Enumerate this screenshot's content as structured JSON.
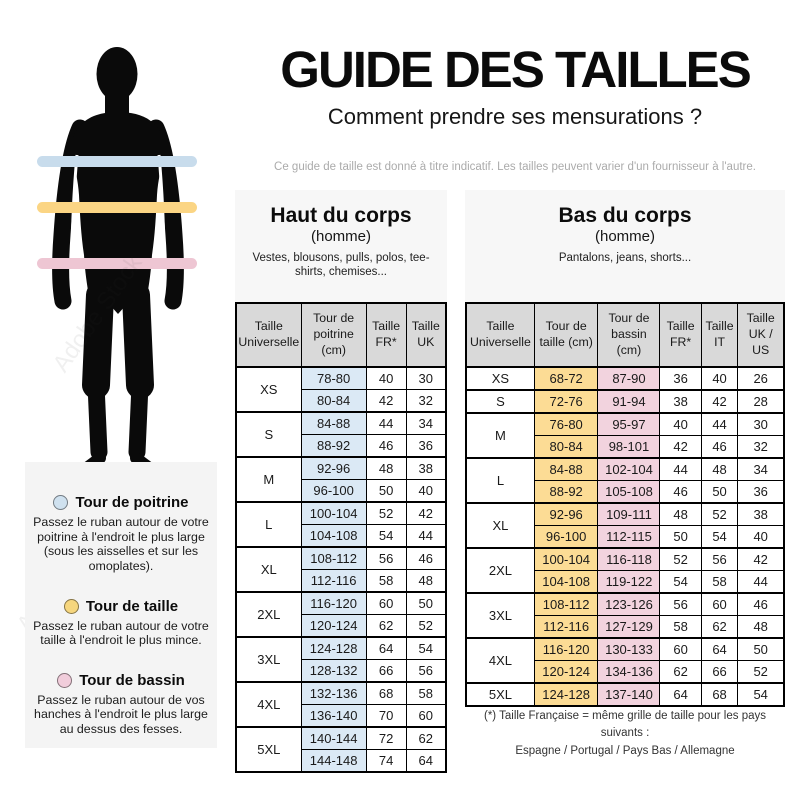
{
  "header": {
    "title": "GUIDE DES TAILLES",
    "subtitle": "Comment prendre ses mensurations ?",
    "disclaimer": "Ce guide de taille est donné à titre indicatif. Les tailles peuvent varier d'un fournisseur à l'autre."
  },
  "watermark": "Adobe Stock",
  "colors": {
    "band_chest": "#c8dcec",
    "band_waist": "#fbd584",
    "band_hips": "#eec6d3",
    "cell_chest": "#dbe9f5",
    "cell_waist": "#fcdc95",
    "cell_hips": "#f2d3de",
    "table_header_bg": "#d9d9d9",
    "silhouette": "#0a0a0a"
  },
  "legend": {
    "items": [
      {
        "title": "Tour de poitrine",
        "color": "#cfe1ef",
        "description": "Passez le ruban autour de votre poitrine à l'endroit le plus large (sous les aisselles et sur les omoplates)."
      },
      {
        "title": "Tour de taille",
        "color": "#f6d67e",
        "description": "Passez le ruban autour de votre taille à l'endroit le plus mince."
      },
      {
        "title": "Tour de bassin",
        "color": "#f1cddb",
        "description": "Passez le ruban autour de vos hanches à l'endroit le plus large au dessus des fesses."
      }
    ]
  },
  "upper_table": {
    "title": "Haut du corps",
    "subtitle": "(homme)",
    "items": "Vestes, blousons, pulls, polos, tee-shirts, chemises...",
    "columns": [
      "Taille Universelle",
      "Tour de poitrine (cm)",
      "Taille FR*",
      "Taille UK"
    ],
    "groups": [
      {
        "size": "XS",
        "rows": [
          [
            "78-80",
            "40",
            "30"
          ],
          [
            "80-84",
            "42",
            "32"
          ]
        ]
      },
      {
        "size": "S",
        "rows": [
          [
            "84-88",
            "44",
            "34"
          ],
          [
            "88-92",
            "46",
            "36"
          ]
        ]
      },
      {
        "size": "M",
        "rows": [
          [
            "92-96",
            "48",
            "38"
          ],
          [
            "96-100",
            "50",
            "40"
          ]
        ]
      },
      {
        "size": "L",
        "rows": [
          [
            "100-104",
            "52",
            "42"
          ],
          [
            "104-108",
            "54",
            "44"
          ]
        ]
      },
      {
        "size": "XL",
        "rows": [
          [
            "108-112",
            "56",
            "46"
          ],
          [
            "112-116",
            "58",
            "48"
          ]
        ]
      },
      {
        "size": "2XL",
        "rows": [
          [
            "116-120",
            "60",
            "50"
          ],
          [
            "120-124",
            "62",
            "52"
          ]
        ]
      },
      {
        "size": "3XL",
        "rows": [
          [
            "124-128",
            "64",
            "54"
          ],
          [
            "128-132",
            "66",
            "56"
          ]
        ]
      },
      {
        "size": "4XL",
        "rows": [
          [
            "132-136",
            "68",
            "58"
          ],
          [
            "136-140",
            "70",
            "60"
          ]
        ]
      },
      {
        "size": "5XL",
        "rows": [
          [
            "140-144",
            "72",
            "62"
          ],
          [
            "144-148",
            "74",
            "64"
          ]
        ]
      }
    ]
  },
  "lower_table": {
    "title": "Bas du corps",
    "subtitle": "(homme)",
    "items": "Pantalons, jeans, shorts...",
    "columns": [
      "Taille Universelle",
      "Tour de taille (cm)",
      "Tour de bassin (cm)",
      "Taille FR*",
      "Taille IT",
      "Taille UK / US"
    ],
    "groups": [
      {
        "size": "XS",
        "rows": [
          [
            "68-72",
            "87-90",
            "36",
            "40",
            "26"
          ]
        ]
      },
      {
        "size": "S",
        "rows": [
          [
            "72-76",
            "91-94",
            "38",
            "42",
            "28"
          ]
        ]
      },
      {
        "size": "M",
        "rows": [
          [
            "76-80",
            "95-97",
            "40",
            "44",
            "30"
          ],
          [
            "80-84",
            "98-101",
            "42",
            "46",
            "32"
          ]
        ]
      },
      {
        "size": "L",
        "rows": [
          [
            "84-88",
            "102-104",
            "44",
            "48",
            "34"
          ],
          [
            "88-92",
            "105-108",
            "46",
            "50",
            "36"
          ]
        ]
      },
      {
        "size": "XL",
        "rows": [
          [
            "92-96",
            "109-111",
            "48",
            "52",
            "38"
          ],
          [
            "96-100",
            "112-115",
            "50",
            "54",
            "40"
          ]
        ]
      },
      {
        "size": "2XL",
        "rows": [
          [
            "100-104",
            "116-118",
            "52",
            "56",
            "42"
          ],
          [
            "104-108",
            "119-122",
            "54",
            "58",
            "44"
          ]
        ]
      },
      {
        "size": "3XL",
        "rows": [
          [
            "108-112",
            "123-126",
            "56",
            "60",
            "46"
          ],
          [
            "112-116",
            "127-129",
            "58",
            "62",
            "48"
          ]
        ]
      },
      {
        "size": "4XL",
        "rows": [
          [
            "116-120",
            "130-133",
            "60",
            "64",
            "50"
          ],
          [
            "120-124",
            "134-136",
            "62",
            "66",
            "52"
          ]
        ]
      },
      {
        "size": "5XL",
        "rows": [
          [
            "124-128",
            "137-140",
            "64",
            "68",
            "54"
          ]
        ]
      }
    ]
  },
  "footnote": {
    "line1": "(*) Taille Française = même grille de taille pour les pays suivants :",
    "line2": "Espagne / Portugal / Pays Bas / Allemagne"
  }
}
